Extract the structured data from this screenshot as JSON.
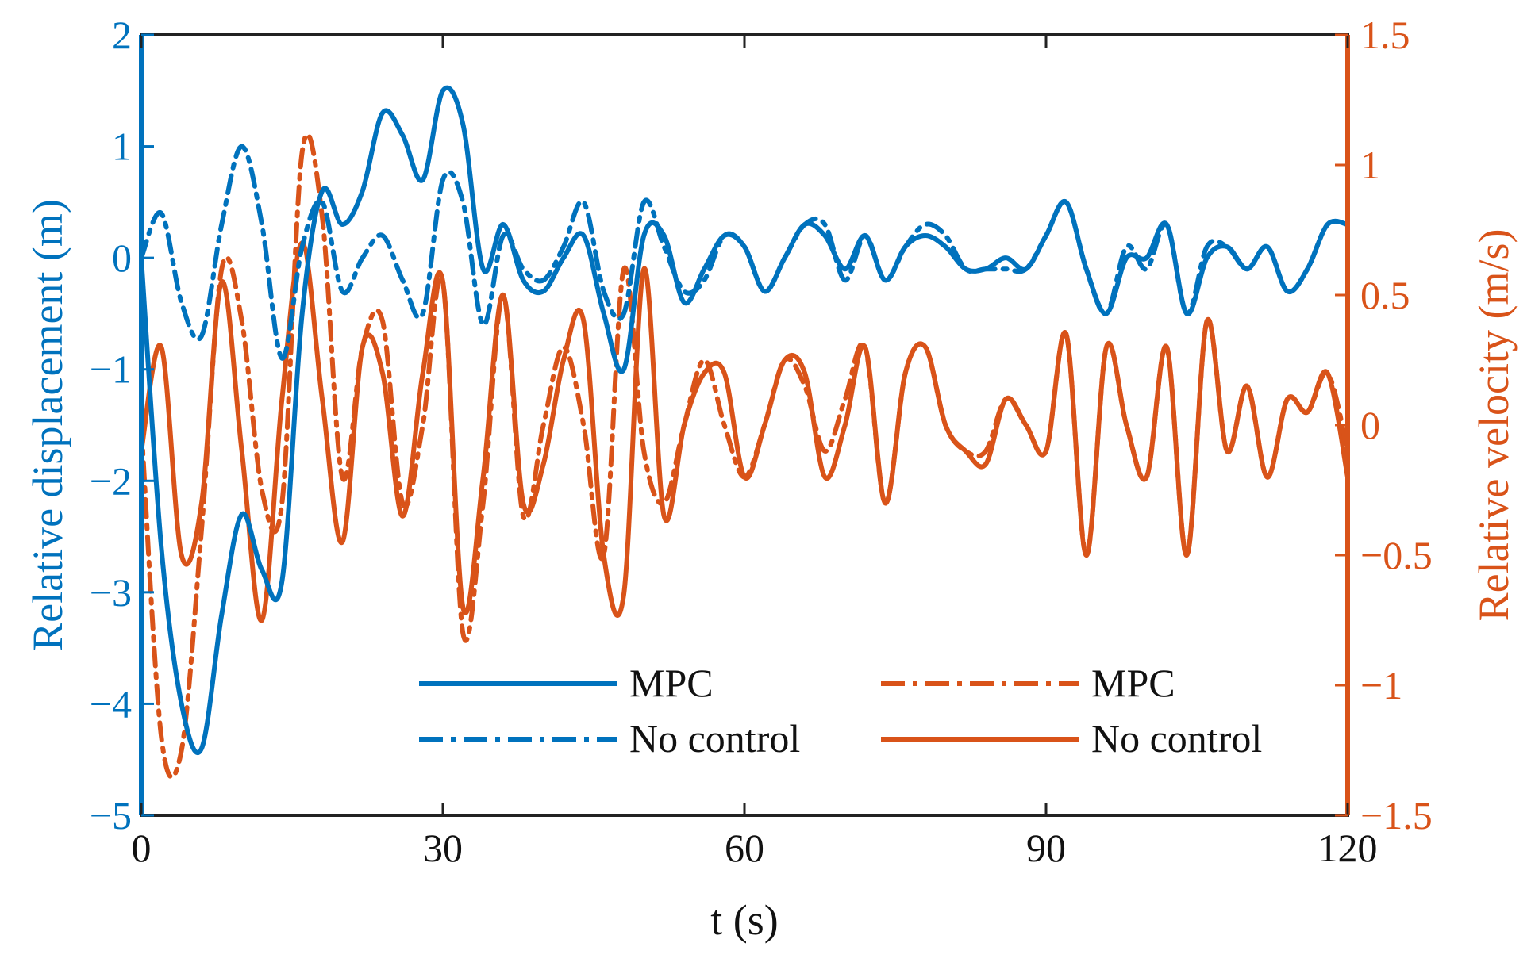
{
  "chart_data": {
    "type": "line",
    "x": [
      0,
      2,
      4,
      6,
      8,
      10,
      12,
      14,
      16,
      18,
      20,
      22,
      24,
      26,
      28,
      30,
      32,
      34,
      36,
      38,
      40,
      42,
      44,
      46,
      48,
      50,
      52,
      54,
      56,
      58,
      60,
      62,
      64,
      66,
      68,
      70,
      72,
      74,
      76,
      78,
      80,
      82,
      84,
      86,
      88,
      90,
      92,
      94,
      96,
      98,
      100,
      102,
      104,
      106,
      108,
      110,
      112,
      114,
      116,
      118,
      120
    ],
    "xlabel": "t (s)",
    "xlim": [
      0,
      120
    ],
    "xticks": [
      0,
      30,
      60,
      90,
      120
    ],
    "xtick_labels": [
      "0",
      "30",
      "60",
      "90",
      "120"
    ],
    "left_axis": {
      "label": "Relative displacement (m)",
      "ylim": [
        -5,
        2
      ],
      "ticks": [
        -5,
        -4,
        -3,
        -2,
        -1,
        0,
        1,
        2
      ],
      "tick_labels": [
        "−5",
        "−4",
        "−3",
        "−2",
        "−1",
        "0",
        "1",
        "2"
      ],
      "color": "#0072BD"
    },
    "right_axis": {
      "label": "Relative velocity (m/s)",
      "ylim": [
        -1.5,
        1.5
      ],
      "ticks": [
        -1.5,
        -1,
        -0.5,
        0,
        0.5,
        1,
        1.5
      ],
      "tick_labels": [
        "−1.5",
        "−1",
        "−0.5",
        "0",
        "0.5",
        "1",
        "1.5"
      ],
      "color": "#D95319"
    },
    "series": [
      {
        "name": "MPC",
        "axis": "left",
        "style": "solid",
        "color": "#0072BD",
        "values": [
          0,
          -2.6,
          -4.0,
          -4.4,
          -3.2,
          -2.3,
          -2.8,
          -2.9,
          -0.5,
          0.6,
          0.3,
          0.6,
          1.3,
          1.1,
          0.7,
          1.5,
          1.2,
          -0.1,
          0.3,
          -0.2,
          -0.3,
          0.0,
          0.2,
          -0.5,
          -1.0,
          0.2,
          0.2,
          -0.4,
          -0.1,
          0.2,
          0.1,
          -0.3,
          0.0,
          0.3,
          0.2,
          -0.1,
          0.2,
          -0.2,
          0.1,
          0.2,
          0.1,
          -0.1,
          -0.1,
          0.0,
          -0.1,
          0.2,
          0.5,
          -0.1,
          -0.5,
          0.0,
          0.0,
          0.3,
          -0.5,
          0.0,
          0.1,
          -0.1,
          0.1,
          -0.3,
          -0.1,
          0.3,
          0.3
        ]
      },
      {
        "name": "No control",
        "axis": "left",
        "style": "dashdot",
        "color": "#0072BD",
        "values": [
          0,
          0.4,
          -0.4,
          -0.7,
          0.3,
          1.0,
          0.3,
          -0.9,
          0.1,
          0.5,
          -0.3,
          0.0,
          0.2,
          -0.2,
          -0.5,
          0.7,
          0.5,
          -0.6,
          0.2,
          -0.1,
          -0.2,
          0.1,
          0.5,
          -0.3,
          -0.5,
          0.5,
          0.1,
          -0.3,
          -0.2,
          0.2,
          0.1,
          -0.3,
          0.0,
          0.3,
          0.3,
          -0.2,
          0.2,
          -0.2,
          0.1,
          0.3,
          0.2,
          -0.1,
          -0.1,
          -0.1,
          -0.1,
          0.2,
          0.5,
          -0.1,
          -0.5,
          0.1,
          -0.1,
          0.3,
          -0.5,
          0.1,
          0.1,
          -0.1,
          0.1,
          -0.3,
          -0.1,
          0.3,
          0.3
        ]
      },
      {
        "name": "MPC",
        "axis": "right",
        "style": "dashdot",
        "color": "#D95319",
        "values": [
          0,
          -1.2,
          -1.25,
          -0.4,
          0.6,
          0.4,
          -0.25,
          -0.3,
          1.05,
          0.8,
          -0.2,
          0.3,
          0.4,
          -0.3,
          0.0,
          0.55,
          -0.8,
          -0.3,
          0.5,
          -0.35,
          0.0,
          0.3,
          0.0,
          -0.5,
          0.6,
          -0.1,
          -0.3,
          0.0,
          0.25,
          0.0,
          -0.2,
          0.0,
          0.25,
          0.15,
          -0.1,
          0.1,
          0.3,
          -0.3,
          0.2,
          0.3,
          0.0,
          -0.1,
          -0.1,
          0.1,
          0.0,
          -0.1,
          0.35,
          -0.5,
          0.3,
          0.0,
          -0.2,
          0.3,
          -0.5,
          0.4,
          -0.1,
          0.15,
          -0.2,
          0.1,
          0.05,
          0.2,
          -0.1
        ]
      },
      {
        "name": "No control",
        "axis": "right",
        "style": "solid",
        "color": "#D95319",
        "values": [
          -0.1,
          0.3,
          -0.5,
          -0.3,
          0.55,
          -0.1,
          -0.75,
          0.1,
          0.7,
          0.1,
          -0.45,
          0.3,
          0.2,
          -0.35,
          0.2,
          0.55,
          -0.7,
          -0.2,
          0.5,
          -0.3,
          -0.15,
          0.25,
          0.4,
          -0.5,
          -0.65,
          0.6,
          -0.35,
          0.0,
          0.2,
          0.2,
          -0.2,
          0.0,
          0.25,
          0.2,
          -0.2,
          0.0,
          0.3,
          -0.3,
          0.2,
          0.3,
          0.0,
          -0.1,
          -0.15,
          0.1,
          0.0,
          -0.1,
          0.35,
          -0.5,
          0.3,
          0.0,
          -0.2,
          0.3,
          -0.5,
          0.4,
          -0.1,
          0.15,
          -0.2,
          0.1,
          0.05,
          0.2,
          -0.2
        ]
      }
    ],
    "legend": {
      "placement": "bottom-right",
      "columns": 2,
      "entries": [
        {
          "label": "MPC",
          "style": "solid",
          "color": "#0072BD"
        },
        {
          "label": "No control",
          "style": "dashdot",
          "color": "#0072BD"
        },
        {
          "label": "MPC",
          "style": "dashdot",
          "color": "#D95319"
        },
        {
          "label": "No control",
          "style": "solid",
          "color": "#D95319"
        }
      ]
    },
    "grid": false
  }
}
